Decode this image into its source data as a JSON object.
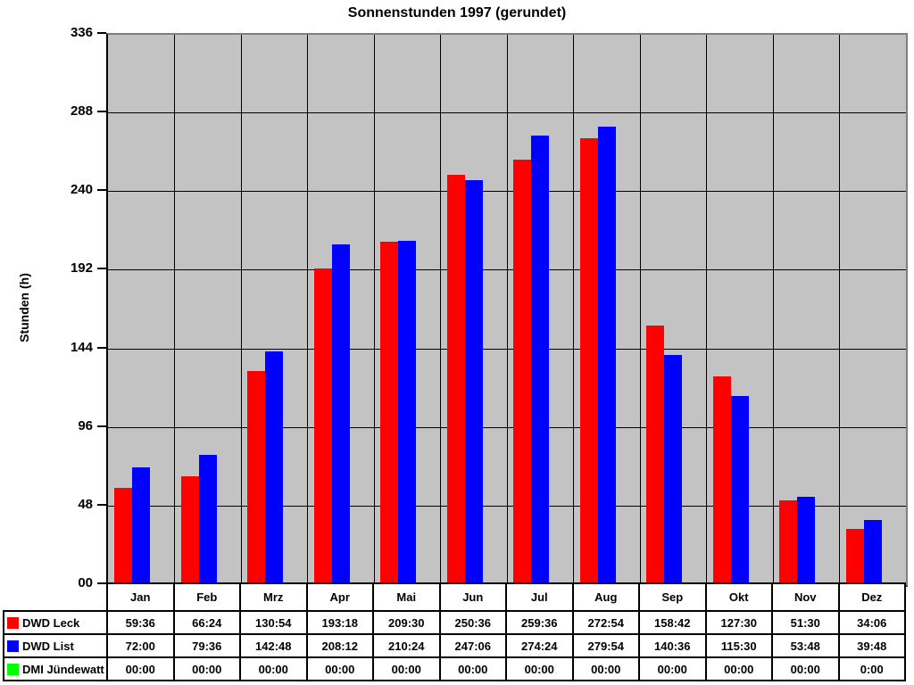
{
  "title": "Sonnenstunden 1997 (gerundet)",
  "y_axis": {
    "label": "Stunden (h)",
    "ticks": [
      "00",
      "48",
      "96",
      "144",
      "192",
      "240",
      "288",
      "336"
    ],
    "max": 336,
    "step": 48
  },
  "chart_data": {
    "type": "bar",
    "title": "Sonnenstunden 1997 (gerundet)",
    "xlabel": "",
    "ylabel": "Stunden (h)",
    "ylim": [
      0,
      336
    ],
    "grid": true,
    "legend_position": "table-left",
    "plot_background": "#c3c3c3",
    "categories": [
      "Jan",
      "Feb",
      "Mrz",
      "Apr",
      "Mai",
      "Jun",
      "Jul",
      "Aug",
      "Sep",
      "Okt",
      "Nov",
      "Dez"
    ],
    "series": [
      {
        "name": "DWD Leck",
        "color": "#ff0000",
        "values": [
          59.6,
          66.4,
          130.9,
          193.3,
          209.5,
          250.6,
          259.6,
          272.9,
          158.7,
          127.5,
          51.5,
          34.1
        ]
      },
      {
        "name": "DWD List",
        "color": "#0000ff",
        "values": [
          72.0,
          79.6,
          142.8,
          208.2,
          210.4,
          247.1,
          274.4,
          279.9,
          140.6,
          115.5,
          53.8,
          39.8
        ]
      },
      {
        "name": "DMI Jündewatt",
        "color": "#00ff00",
        "values": [
          0,
          0,
          0,
          0,
          0,
          0,
          0,
          0,
          0,
          0,
          0,
          0
        ]
      }
    ]
  },
  "table": {
    "rows": [
      {
        "label": "DWD Leck",
        "color": "#ff0000",
        "cells": [
          "59:36",
          "66:24",
          "130:54",
          "193:18",
          "209:30",
          "250:36",
          "259:36",
          "272:54",
          "158:42",
          "127:30",
          "51:30",
          "34:06"
        ]
      },
      {
        "label": "DWD List",
        "color": "#0000ff",
        "cells": [
          "72:00",
          "79:36",
          "142:48",
          "208:12",
          "210:24",
          "247:06",
          "274:24",
          "279:54",
          "140:36",
          "115:30",
          "53:48",
          "39:48"
        ]
      },
      {
        "label": "DMI Jündewatt",
        "color": "#00ff00",
        "cells": [
          "00:00",
          "00:00",
          "00:00",
          "00:00",
          "00:00",
          "00:00",
          "00:00",
          "00:00",
          "00:00",
          "00:00",
          "00:00",
          "0:00"
        ]
      }
    ]
  },
  "colors": {
    "bar_red": "#ff0000",
    "bar_blue": "#0000ff",
    "bar_green": "#00ff00",
    "plot_background": "#c3c3c3",
    "plot_border": "#7f7f7f",
    "gridline": "#000000"
  }
}
